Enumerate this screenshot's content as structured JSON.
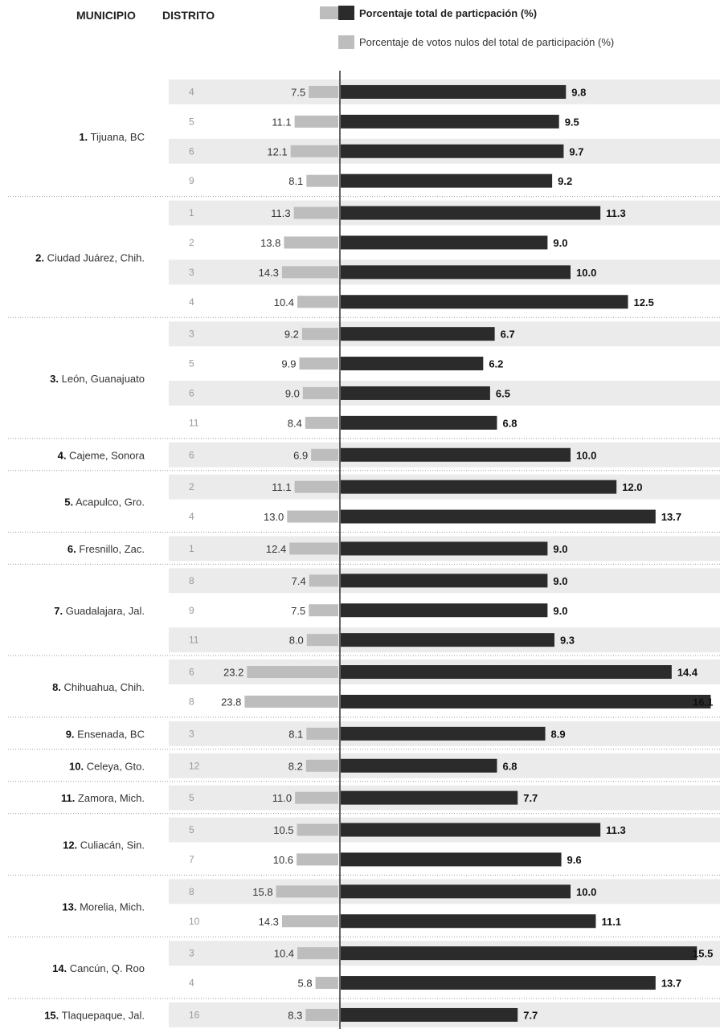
{
  "headers": {
    "municipio": "MUNICIPIO",
    "distrito": "DISTRITO"
  },
  "legend": {
    "participacion": "Porcentaje total de particpación (%)",
    "nulos": "Porcentaje de votos nulos del total de participación (%)"
  },
  "colors": {
    "participacion": "#2b2b2b",
    "nulos": "#bdbdbd",
    "band": "#ebebeb",
    "axis": "#333333"
  },
  "chart_data": {
    "type": "bar",
    "orientation": "horizontal-diverging",
    "series": [
      {
        "name": "Porcentaje total de particpación (%)",
        "side": "right"
      },
      {
        "name": "Porcentaje de votos nulos del total de participación (%)",
        "side": "left"
      }
    ],
    "groups": [
      {
        "rank": "1.",
        "name": "Tijuana, BC",
        "rows": [
          {
            "distrito": "4",
            "nulos": 7.5,
            "participacion": 9.8
          },
          {
            "distrito": "5",
            "nulos": 11.1,
            "participacion": 9.5
          },
          {
            "distrito": "6",
            "nulos": 12.1,
            "participacion": 9.7
          },
          {
            "distrito": "9",
            "nulos": 8.1,
            "participacion": 9.2
          }
        ]
      },
      {
        "rank": "2.",
        "name": "Ciudad Juárez, Chih.",
        "rows": [
          {
            "distrito": "1",
            "nulos": 11.3,
            "participacion": 11.3
          },
          {
            "distrito": "2",
            "nulos": 13.8,
            "participacion": 9.0
          },
          {
            "distrito": "3",
            "nulos": 14.3,
            "participacion": 10.0
          },
          {
            "distrito": "4",
            "nulos": 10.4,
            "participacion": 12.5
          }
        ]
      },
      {
        "rank": "3.",
        "name": "León, Guanajuato",
        "rows": [
          {
            "distrito": "3",
            "nulos": 9.2,
            "participacion": 6.7
          },
          {
            "distrito": "5",
            "nulos": 9.9,
            "participacion": 6.2
          },
          {
            "distrito": "6",
            "nulos": 9.0,
            "participacion": 6.5
          },
          {
            "distrito": "11",
            "nulos": 8.4,
            "participacion": 6.8
          }
        ]
      },
      {
        "rank": "4.",
        "name": "Cajeme, Sonora",
        "rows": [
          {
            "distrito": "6",
            "nulos": 6.9,
            "participacion": 10.0
          }
        ]
      },
      {
        "rank": "5.",
        "name": "Acapulco, Gro.",
        "rows": [
          {
            "distrito": "2",
            "nulos": 11.1,
            "participacion": 12.0
          },
          {
            "distrito": "4",
            "nulos": 13.0,
            "participacion": 13.7
          }
        ]
      },
      {
        "rank": "6.",
        "name": "Fresnillo, Zac.",
        "rows": [
          {
            "distrito": "1",
            "nulos": 12.4,
            "participacion": 9.0
          }
        ]
      },
      {
        "rank": "7.",
        "name": "Guadalajara, Jal.",
        "rows": [
          {
            "distrito": "8",
            "nulos": 7.4,
            "participacion": 9.0
          },
          {
            "distrito": "9",
            "nulos": 7.5,
            "participacion": 9.0
          },
          {
            "distrito": "11",
            "nulos": 8.0,
            "participacion": 9.3
          }
        ]
      },
      {
        "rank": "8.",
        "name": "Chihuahua, Chih.",
        "rows": [
          {
            "distrito": "6",
            "nulos": 23.2,
            "participacion": 14.4
          },
          {
            "distrito": "8",
            "nulos": 23.8,
            "participacion": 16.1
          }
        ]
      },
      {
        "rank": "9.",
        "name": "Ensenada, BC",
        "rows": [
          {
            "distrito": "3",
            "nulos": 8.1,
            "participacion": 8.9
          }
        ]
      },
      {
        "rank": "10.",
        "name": "Celeya, Gto.",
        "rows": [
          {
            "distrito": "12",
            "nulos": 8.2,
            "participacion": 6.8
          }
        ]
      },
      {
        "rank": "11.",
        "name": "Zamora, Mich.",
        "rows": [
          {
            "distrito": "5",
            "nulos": 11.0,
            "participacion": 7.7
          }
        ]
      },
      {
        "rank": "12.",
        "name": "Culiacán, Sin.",
        "rows": [
          {
            "distrito": "5",
            "nulos": 10.5,
            "participacion": 11.3
          },
          {
            "distrito": "7",
            "nulos": 10.6,
            "participacion": 9.6
          }
        ]
      },
      {
        "rank": "13.",
        "name": "Morelia, Mich.",
        "rows": [
          {
            "distrito": "8",
            "nulos": 15.8,
            "participacion": 10.0
          },
          {
            "distrito": "10",
            "nulos": 14.3,
            "participacion": 11.1
          }
        ]
      },
      {
        "rank": "14.",
        "name": "Cancún, Q. Roo",
        "rows": [
          {
            "distrito": "3",
            "nulos": 10.4,
            "participacion": 15.5
          },
          {
            "distrito": "4",
            "nulos": 5.8,
            "participacion": 13.7
          }
        ]
      },
      {
        "rank": "15.",
        "name": "Tlaquepaque, Jal.",
        "rows": [
          {
            "distrito": "16",
            "nulos": 8.3,
            "participacion": 7.7
          }
        ]
      }
    ]
  }
}
